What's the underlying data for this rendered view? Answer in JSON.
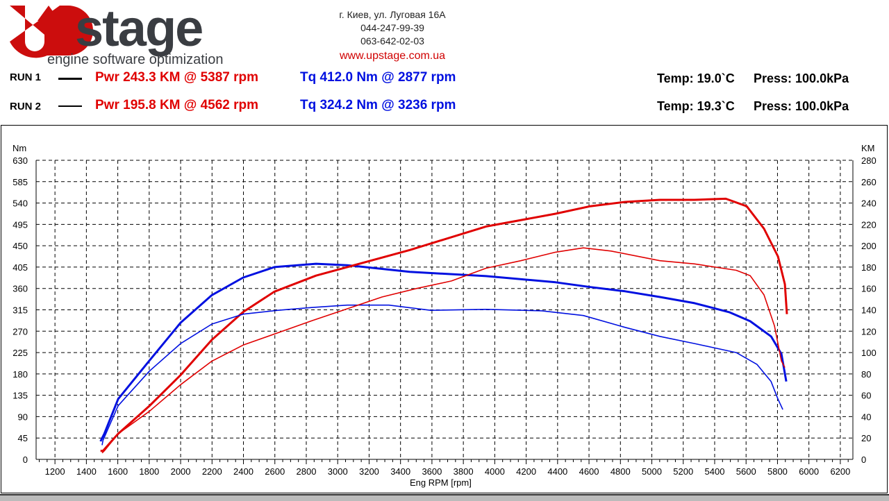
{
  "header": {
    "logo_text": "UPstage",
    "logo_tagline": "engine software optimization",
    "address": "г. Киев, ул. Луговая 16А",
    "phone1": "044-247-99-39",
    "phone2": "063-642-02-03",
    "website": "www.upstage.com.ua"
  },
  "runs": [
    {
      "label": "RUN 1",
      "pwr": "Pwr  243.3 KM @ 5387 rpm",
      "tq": "Tq 412.0 Nm @ 2877 rpm",
      "temp": "Temp: 19.0`C",
      "press": "Press: 100.0kPa"
    },
    {
      "label": "RUN 2",
      "pwr": "Pwr  195.8 KM @ 4562 rpm",
      "tq": "Tq 324.2 Nm @ 3236 rpm",
      "temp": "Temp: 19.3`C",
      "press": "Press: 100.0kPa"
    }
  ],
  "colors": {
    "power": "#e00000",
    "torque": "#0010e0"
  },
  "chart_data": {
    "type": "line",
    "xlabel": "Eng RPM [rpm]",
    "ylabel": "Nm",
    "y2label": "KM",
    "xlim": [
      1080,
      6280
    ],
    "ylim": [
      0,
      630
    ],
    "y2lim": [
      0,
      280
    ],
    "xticks": [
      1200,
      1400,
      1600,
      1800,
      2000,
      2200,
      2400,
      2600,
      2800,
      3000,
      3200,
      3400,
      3600,
      3800,
      4000,
      4200,
      4400,
      4600,
      4800,
      5000,
      5200,
      5400,
      5600,
      5800,
      6000,
      6200
    ],
    "yticks": [
      0,
      45,
      90,
      135,
      180,
      225,
      270,
      315,
      360,
      405,
      450,
      495,
      540,
      585,
      630
    ],
    "y2ticks": [
      0,
      20,
      40,
      60,
      80,
      100,
      120,
      140,
      160,
      180,
      200,
      220,
      240,
      260,
      280
    ],
    "grid": true,
    "series": [
      {
        "run": "RUN 1",
        "quantity": "torque",
        "axis": "left",
        "color": "#0010e0",
        "width": 3,
        "points": [
          [
            1490,
            38
          ],
          [
            1514,
            54
          ],
          [
            1602,
            127
          ],
          [
            1801,
            208
          ],
          [
            2000,
            288
          ],
          [
            2199,
            346
          ],
          [
            2398,
            383
          ],
          [
            2597,
            405
          ],
          [
            2862,
            412
          ],
          [
            3061,
            409
          ],
          [
            3459,
            395
          ],
          [
            3945,
            386
          ],
          [
            4387,
            373
          ],
          [
            4608,
            363
          ],
          [
            4830,
            354
          ],
          [
            5051,
            342
          ],
          [
            5272,
            329
          ],
          [
            5493,
            310
          ],
          [
            5626,
            291
          ],
          [
            5759,
            259
          ],
          [
            5825,
            222
          ],
          [
            5856,
            164
          ]
        ]
      },
      {
        "run": "RUN 1",
        "quantity": "power",
        "axis": "right",
        "color": "#e00000",
        "width": 3,
        "points": [
          [
            1490,
            8
          ],
          [
            1506,
            8
          ],
          [
            1602,
            24
          ],
          [
            1801,
            50
          ],
          [
            2000,
            79
          ],
          [
            2199,
            112
          ],
          [
            2398,
            138
          ],
          [
            2597,
            157
          ],
          [
            2862,
            172
          ],
          [
            3061,
            180
          ],
          [
            3459,
            196
          ],
          [
            3945,
            218
          ],
          [
            4387,
            230
          ],
          [
            4608,
            237
          ],
          [
            4830,
            241
          ],
          [
            5051,
            243
          ],
          [
            5272,
            243
          ],
          [
            5471,
            244
          ],
          [
            5604,
            237
          ],
          [
            5714,
            216
          ],
          [
            5803,
            190
          ],
          [
            5847,
            164
          ],
          [
            5860,
            136
          ]
        ]
      },
      {
        "run": "RUN 2",
        "quantity": "torque",
        "axis": "left",
        "color": "#0010e0",
        "width": 1.6,
        "points": [
          [
            1500,
            30
          ],
          [
            1506,
            40
          ],
          [
            1602,
            113
          ],
          [
            1801,
            186
          ],
          [
            2000,
            244
          ],
          [
            2199,
            285
          ],
          [
            2398,
            306
          ],
          [
            2619,
            314
          ],
          [
            2840,
            320
          ],
          [
            3061,
            325
          ],
          [
            3326,
            325
          ],
          [
            3591,
            314
          ],
          [
            3945,
            316
          ],
          [
            4299,
            313
          ],
          [
            4564,
            303
          ],
          [
            4830,
            278
          ],
          [
            5051,
            259
          ],
          [
            5272,
            244
          ],
          [
            5537,
            225
          ],
          [
            5670,
            200
          ],
          [
            5759,
            164
          ],
          [
            5803,
            127
          ],
          [
            5834,
            105
          ]
        ]
      },
      {
        "run": "RUN 2",
        "quantity": "power",
        "axis": "right",
        "color": "#e00000",
        "width": 1.6,
        "points": [
          [
            1500,
            6
          ],
          [
            1514,
            8
          ],
          [
            1602,
            24
          ],
          [
            1801,
            45
          ],
          [
            2000,
            70
          ],
          [
            2199,
            92
          ],
          [
            2398,
            107
          ],
          [
            2840,
            130
          ],
          [
            3061,
            141
          ],
          [
            3282,
            152
          ],
          [
            3503,
            160
          ],
          [
            3724,
            167
          ],
          [
            3945,
            179
          ],
          [
            4166,
            186
          ],
          [
            4387,
            194
          ],
          [
            4564,
            198
          ],
          [
            4741,
            195
          ],
          [
            5051,
            186
          ],
          [
            5272,
            183
          ],
          [
            5537,
            177
          ],
          [
            5626,
            172
          ],
          [
            5714,
            154
          ],
          [
            5781,
            125
          ],
          [
            5825,
            92
          ],
          [
            5847,
            86
          ]
        ]
      }
    ]
  }
}
